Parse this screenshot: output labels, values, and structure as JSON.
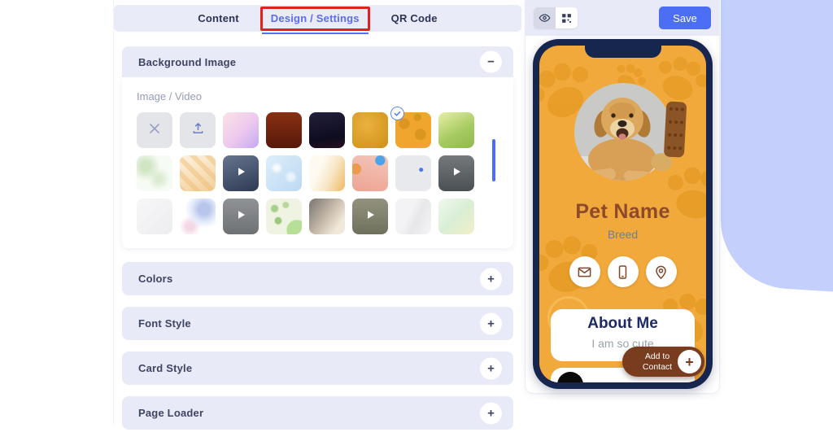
{
  "tabs": [
    {
      "label": "Content",
      "active": false
    },
    {
      "label": "Design / Settings",
      "active": true
    },
    {
      "label": "QR Code",
      "active": false
    }
  ],
  "design_panel": {
    "background_image": {
      "title": "Background Image",
      "collapse_glyph": "−",
      "subsection_label": "Image / Video",
      "thumbnails": [
        {
          "name": "no-background",
          "icon": "clear-icon",
          "bg": "#e4e5e9"
        },
        {
          "name": "upload",
          "icon": "upload-icon",
          "bg": "#e4e5e9"
        },
        {
          "name": "pink-lavender-gradient",
          "bg": "linear-gradient(135deg,#fbe3e6,#ecc8ee 55%,#c3a9f2)"
        },
        {
          "name": "dark-red-texture",
          "bg": "linear-gradient(180deg,#8a2f12,#57190a)"
        },
        {
          "name": "dark-navy-video-still",
          "bg": "linear-gradient(170deg,#23203b,#0e0c20 70%,#27101e)"
        },
        {
          "name": "golden-texture",
          "bg": "radial-gradient(circle at 40% 35%,#eab23e,#cf8f18)"
        },
        {
          "name": "orange-paw-pattern",
          "selected": true,
          "bg": "radial-gradient(circle at 25% 32%,#da9621 0 14%,transparent 16%),radial-gradient(circle at 70% 62%,#da9621 0 16%,transparent 18%),radial-gradient(circle at 62% 14%,#da9621 0 9%,transparent 11%),#f0a62e"
        },
        {
          "name": "green-gradient",
          "bg": "linear-gradient(150deg,#e7f0a6,#a8cb63 55%,#8db84d)"
        },
        {
          "name": "light-green-leaves",
          "bg": "radial-gradient(circle at 25% 30%,#cfe5c3 12%,transparent 40%),radial-gradient(circle at 62% 65%,#dcecd2 10%,transparent 35%),#f6fbf4"
        },
        {
          "name": "orange-weave",
          "bg": "repeating-linear-gradient(45deg,rgba(238,186,112,.45) 0 6px,transparent 6px 13px),linear-gradient(160deg,#fdf3e2,#f2cf97)"
        },
        {
          "name": "video-blue-office",
          "icon": "play-icon",
          "bg": "linear-gradient(160deg,#66758f,#2e3a52)"
        },
        {
          "name": "blue-bokeh",
          "bg": "radial-gradient(circle at 30% 35%,rgba(255,255,255,.85) 6%,transparent 18%),radial-gradient(circle at 70% 60%,rgba(255,255,255,.6) 8%,transparent 20%),linear-gradient(135deg,#ddeefb,#bcd9f2)"
        },
        {
          "name": "cream-gradient",
          "bg": "linear-gradient(115deg,#fefaf2 30%,#f8e7c6 60%,#efb763)"
        },
        {
          "name": "salmon-abstract",
          "bg": "radial-gradient(circle at 78% 14%,#4da3e8 0 11%,transparent 13%),radial-gradient(circle at 10% 38%,#eb9b4f 0 13%,transparent 15%),linear-gradient(195deg,#f3c6ba,#eda392)"
        },
        {
          "name": "gray-blue-dot",
          "bg": "radial-gradient(circle at 72% 40%,#4d79e6 0 5%,transparent 7%),#e7e9ec"
        },
        {
          "name": "video-dark-gray",
          "icon": "play-icon",
          "bg": "linear-gradient(180deg,#75797c,#4b5054)"
        },
        {
          "name": "white-subtle",
          "bg": "linear-gradient(135deg,#f7f7f9,#ededf0)"
        },
        {
          "name": "blue-splash",
          "bg": "radial-gradient(circle at 68% 30%,#b9c6ec 0 16%,#dfe7f8 34%,transparent 55%),radial-gradient(circle at 28% 78%,#f3d9e6 0 10%,transparent 28%),#ffffff"
        },
        {
          "name": "video-gray",
          "icon": "play-icon",
          "bg": "linear-gradient(180deg,#909396,#6e7174)"
        },
        {
          "name": "green-leaf-doodles",
          "bg": "radial-gradient(circle at 24% 28%,#a9cf8c 0 8%,transparent 12%),radial-gradient(circle at 55% 18%,#b8d79c 0 7%,transparent 11%),radial-gradient(circle at 34% 62%,#9cc77e 0 9%,transparent 13%),radial-gradient(circle at 86% 88%,#b7e096 0 22%,transparent 24%),#eef3e2"
        },
        {
          "name": "warm-light",
          "bg": "linear-gradient(125deg,#87827a 10%,#cfc3b2 55%,#f1e8da 80%)"
        },
        {
          "name": "video-olive",
          "icon": "play-icon",
          "bg": "linear-gradient(180deg,#93927f,#6f705c)"
        },
        {
          "name": "marble",
          "bg": "linear-gradient(115deg,#f3f3f5 40%,#e7e7ea 60%,#f5f5f7)"
        },
        {
          "name": "pale-green-yellow",
          "bg": "linear-gradient(135deg,#f0f8ee,#d9eed6 50%,#f3efc7)"
        }
      ]
    },
    "collapsed_sections": [
      {
        "title": "Colors"
      },
      {
        "title": "Font Style"
      },
      {
        "title": "Card Style"
      },
      {
        "title": "Page Loader"
      }
    ],
    "expand_glyph": "+"
  },
  "preview_toolbar": {
    "save_label": "Save",
    "icons": [
      "eye-icon",
      "qr-grid-icon"
    ]
  },
  "phone_preview": {
    "pet_name": "Pet Name",
    "breed": "Breed",
    "contact_icons": [
      "email-icon",
      "phone-icon",
      "location-icon"
    ],
    "about": {
      "title": "About Me",
      "text": "I am so cute"
    },
    "add_to_contact_label": "Add to<br>Contact",
    "add_plus_glyph": "+"
  },
  "colors": {
    "accent_blue": "#4c6ef5",
    "active_tab_blue": "#5b6df0",
    "highlight_red": "#e3211c",
    "section_lavender": "#e9eaf8",
    "phone_frame_navy": "#16264e",
    "phone_bg_orange": "#f2a93b",
    "paw_orange": "#dd9316",
    "pet_name_brown": "#8d4a2b",
    "button_brown": "#7a3c1e",
    "about_title_navy": "#1e2a66",
    "blob_periwinkle": "#c5cffb"
  }
}
